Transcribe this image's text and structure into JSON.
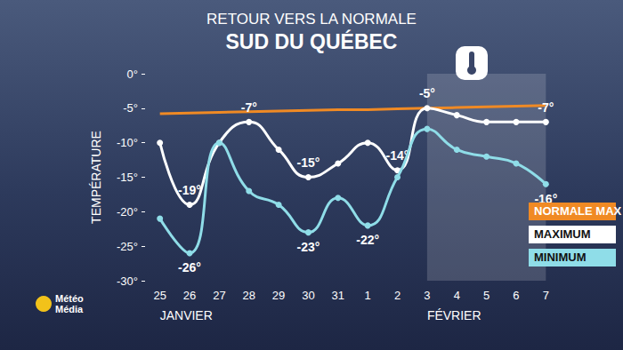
{
  "chart_data": {
    "type": "line",
    "subtitle": "RETOUR VERS LA NORMALE",
    "title": "SUD DU QUÉBEC",
    "source": "Météo Média",
    "y_label": "TEMPÉRATURE",
    "categories": [
      "25",
      "26",
      "27",
      "28",
      "29",
      "30",
      "31",
      "1",
      "2",
      "3",
      "4",
      "5",
      "6",
      "7"
    ],
    "x_groups": [
      {
        "label": "JANVIER",
        "start": "25"
      },
      {
        "label": "FÉVRIER",
        "start": "3"
      }
    ],
    "series": [
      {
        "name": "NORMALE MAX",
        "color": "#f08a24",
        "marker": "none",
        "values": [
          -5.8,
          -5.7,
          -5.6,
          -5.5,
          -5.4,
          -5.3,
          -5.2,
          -5.2,
          -5.1,
          -5.0,
          -4.9,
          -4.8,
          -4.7,
          -4.6
        ]
      },
      {
        "name": "MAXIMUM",
        "color": "#ffffff",
        "marker": "circle",
        "values": [
          -10,
          -19,
          -10,
          -7,
          -11,
          -15,
          -13,
          -10,
          -14,
          -5,
          -6,
          -7,
          -7,
          -7
        ],
        "value_labels": [
          null,
          "-19°",
          null,
          "-7°",
          null,
          "-15°",
          null,
          null,
          "-14°",
          "-5°",
          null,
          null,
          null,
          "-7°"
        ]
      },
      {
        "name": "MINIMUM",
        "color": "#8fdde8",
        "marker": "circle",
        "values": [
          -21,
          -26,
          -10,
          -17,
          -19,
          -23,
          -18,
          -22,
          -15,
          -8,
          -11,
          -12,
          -13,
          -16
        ],
        "value_labels": [
          null,
          "-26°",
          null,
          null,
          null,
          "-23°",
          null,
          "-22°",
          null,
          null,
          null,
          null,
          null,
          "-16°"
        ]
      }
    ],
    "ylim": [
      -30,
      0
    ],
    "yticks": [
      {
        "value": -30,
        "label": "-30°"
      },
      {
        "value": -25,
        "label": "-25°"
      },
      {
        "value": -20,
        "label": "-20°"
      },
      {
        "value": -15,
        "label": "-15°"
      },
      {
        "value": -10,
        "label": "-10°"
      },
      {
        "value": -5,
        "label": "-5°"
      },
      {
        "value": 0,
        "label": "0°"
      }
    ],
    "grid": false,
    "legend": "lower right",
    "data_labels": true
  }
}
